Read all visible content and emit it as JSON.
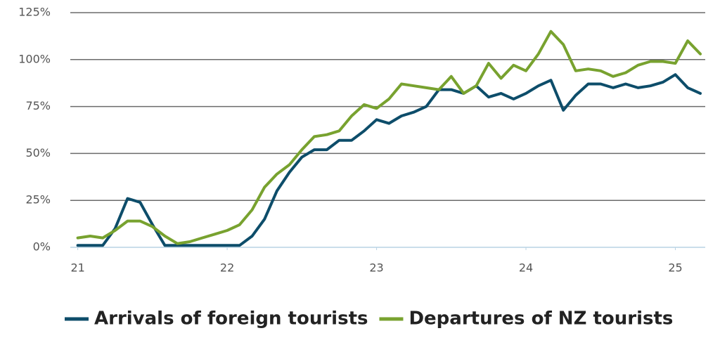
{
  "chart_data": {
    "type": "line",
    "x": [
      21,
      21.083,
      21.167,
      21.25,
      21.333,
      21.417,
      21.5,
      21.583,
      21.667,
      21.75,
      21.833,
      21.917,
      22,
      22.083,
      22.167,
      22.25,
      22.333,
      22.417,
      22.5,
      22.583,
      22.667,
      22.75,
      22.833,
      22.917,
      23,
      23.083,
      23.167,
      23.25,
      23.333,
      23.417,
      23.5,
      23.583,
      23.667,
      23.75,
      23.833,
      23.917,
      24,
      24.083,
      24.167,
      24.25,
      24.333,
      24.417,
      24.5,
      24.583,
      24.667,
      24.75,
      24.833,
      24.917,
      25,
      25.083,
      25.167
    ],
    "series": [
      {
        "name": "Arrivals of foreign tourists",
        "color": "#0d4d6a",
        "values": [
          1,
          1,
          1,
          10,
          26,
          24,
          12,
          1,
          1,
          1,
          1,
          1,
          1,
          1,
          6,
          15,
          30,
          40,
          48,
          52,
          52,
          57,
          57,
          62,
          68,
          66,
          70,
          72,
          75,
          84,
          84,
          82,
          86,
          80,
          82,
          79,
          82,
          86,
          89,
          73,
          81,
          87,
          87,
          85,
          87,
          85,
          86,
          88,
          92,
          85,
          82
        ]
      },
      {
        "name": "Departures of NZ tourists",
        "color": "#78a22f",
        "values": [
          5,
          6,
          5,
          9,
          14,
          14,
          11,
          6,
          2,
          3,
          5,
          7,
          9,
          12,
          20,
          32,
          39,
          44,
          52,
          59,
          60,
          62,
          70,
          76,
          74,
          79,
          87,
          86,
          85,
          84,
          91,
          82,
          86,
          98,
          90,
          97,
          94,
          103,
          115,
          108,
          94,
          95,
          94,
          91,
          93,
          97,
          99,
          99,
          98,
          110,
          103
        ]
      }
    ],
    "xlim": [
      20.95,
      25.2
    ],
    "xticks": [
      21,
      22,
      23,
      24,
      25
    ],
    "ylim": [
      0,
      125
    ],
    "yticks": [
      {
        "value": 0,
        "label": "0%"
      },
      {
        "value": 25,
        "label": "25%"
      },
      {
        "value": 50,
        "label": "50%"
      },
      {
        "value": 75,
        "label": "75%"
      },
      {
        "value": 100,
        "label": "100%"
      },
      {
        "value": 125,
        "label": "125%"
      }
    ],
    "grid": true,
    "legend": "bottom"
  }
}
